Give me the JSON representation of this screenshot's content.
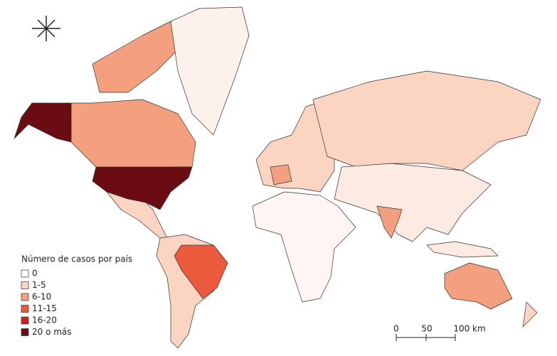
{
  "legend": {
    "title": "Número de casos por país",
    "items": [
      {
        "label": "0",
        "color": "#ffffff"
      },
      {
        "label": "1-5",
        "color": "#fcd4c2"
      },
      {
        "label": "6-10",
        "color": "#f4a07e"
      },
      {
        "label": "11-15",
        "color": "#ec5a3e"
      },
      {
        "label": "16-20",
        "color": "#c9231e"
      },
      {
        "label": "20 o más",
        "color": "#6b0c13"
      }
    ]
  },
  "scale_bar": {
    "labels": [
      "0",
      "50",
      "100 km"
    ]
  }
}
